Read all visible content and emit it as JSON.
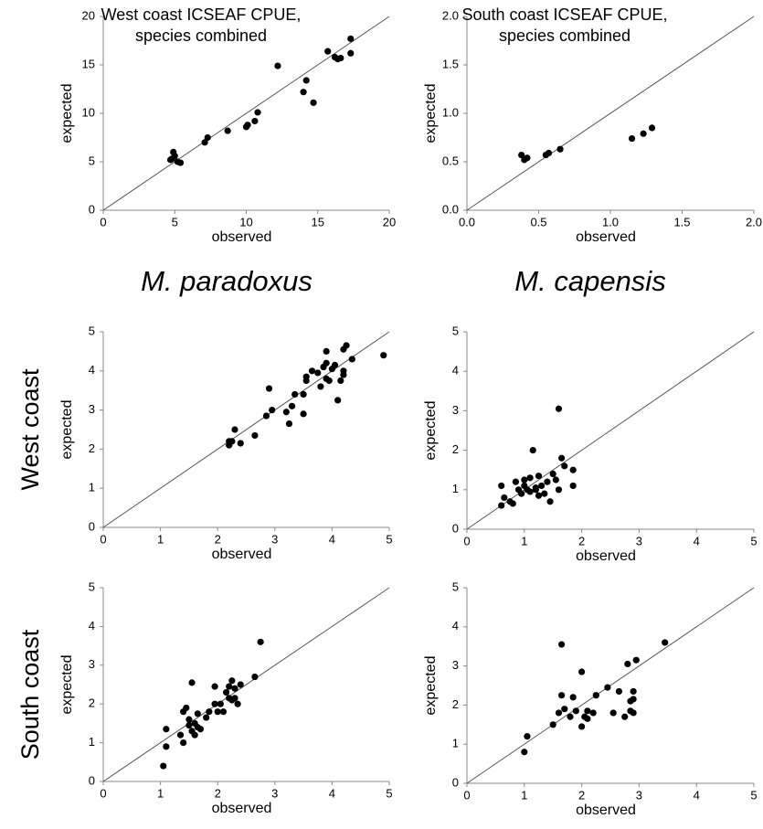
{
  "labels": {
    "columns": [
      "M. paradoxus",
      "M. capensis"
    ],
    "rows": [
      "West coast",
      "South coast"
    ]
  },
  "chart_data": [
    {
      "type": "scatter",
      "title": [
        "West coast ICSEAF CPUE,",
        "species combined"
      ],
      "x_label": "observed",
      "y_label": "expected",
      "color": "#000000",
      "xlim": [
        0,
        20
      ],
      "ylim": [
        0,
        20
      ],
      "xticks": [
        0,
        5,
        10,
        15,
        20
      ],
      "yticks": [
        0,
        5,
        10,
        15,
        20
      ],
      "x": [
        4.8,
        4.9,
        5.0,
        4.7,
        5.2,
        5.4,
        7.1,
        7.3,
        8.7,
        10.0,
        10.1,
        10.6,
        10.8,
        12.2,
        14.0,
        14.2,
        14.7,
        15.7,
        16.2,
        16.4,
        16.6,
        17.3,
        17.3
      ],
      "values": [
        5.3,
        6.0,
        5.6,
        5.2,
        5.0,
        4.9,
        7.0,
        7.5,
        8.2,
        8.6,
        8.8,
        9.2,
        10.1,
        14.9,
        12.2,
        13.4,
        11.1,
        16.4,
        15.8,
        15.6,
        15.7,
        16.2,
        17.7
      ]
    },
    {
      "type": "scatter",
      "title": [
        "South coast ICSEAF CPUE,",
        "species combined"
      ],
      "x_label": "observed",
      "y_label": "expected",
      "color": "#000000",
      "xlim": [
        0,
        2
      ],
      "ylim": [
        0,
        2
      ],
      "xticks": [
        {
          "value": 0,
          "label": "0.0"
        },
        {
          "value": 0.5,
          "label": "0.5"
        },
        {
          "value": 1,
          "label": "1.0"
        },
        {
          "value": 1.5,
          "label": "1.5"
        },
        {
          "value": 2,
          "label": "2.0"
        }
      ],
      "yticks": [
        {
          "value": 0,
          "label": "0.0"
        },
        {
          "value": 0.5,
          "label": "0.5"
        },
        {
          "value": 1,
          "label": "1.0"
        },
        {
          "value": 1.5,
          "label": "1.5"
        },
        {
          "value": 2,
          "label": "2.0"
        }
      ],
      "x": [
        0.38,
        0.4,
        0.42,
        0.55,
        0.57,
        0.65,
        1.15,
        1.23,
        1.29
      ],
      "values": [
        0.57,
        0.52,
        0.54,
        0.57,
        0.59,
        0.63,
        0.74,
        0.79,
        0.85
      ]
    },
    {
      "type": "scatter",
      "x_label": "observed",
      "y_label": "expected",
      "color": "#000000",
      "xlim": [
        0,
        5
      ],
      "ylim": [
        0,
        5
      ],
      "xticks": [
        0,
        1,
        2,
        3,
        4,
        5
      ],
      "yticks": [
        0,
        1,
        2,
        3,
        4,
        5
      ],
      "x": [
        2.2,
        2.2,
        2.25,
        2.3,
        2.4,
        2.65,
        2.85,
        2.9,
        2.95,
        3.2,
        3.25,
        3.3,
        3.35,
        3.5,
        3.5,
        3.55,
        3.55,
        3.65,
        3.75,
        3.8,
        3.85,
        3.9,
        3.9,
        3.9,
        3.95,
        4.0,
        4.05,
        4.1,
        4.15,
        4.2,
        4.2,
        4.2,
        4.25,
        4.35,
        4.9
      ],
      "values": [
        2.1,
        2.2,
        2.2,
        2.5,
        2.15,
        2.35,
        2.85,
        3.55,
        3.0,
        2.95,
        2.65,
        3.1,
        3.4,
        3.4,
        2.9,
        3.75,
        3.85,
        4.0,
        3.95,
        3.6,
        4.1,
        4.2,
        3.8,
        4.5,
        3.75,
        4.05,
        4.15,
        3.25,
        3.75,
        3.9,
        4.0,
        4.55,
        4.65,
        4.3,
        4.4
      ]
    },
    {
      "type": "scatter",
      "x_label": "observed",
      "y_label": "expected",
      "color": "#000000",
      "xlim": [
        0,
        5
      ],
      "ylim": [
        0,
        5
      ],
      "xticks": [
        0,
        1,
        2,
        3,
        4,
        5
      ],
      "yticks": [
        0,
        1,
        2,
        3,
        4,
        5
      ],
      "x": [
        0.6,
        0.6,
        0.65,
        0.75,
        0.8,
        0.85,
        0.9,
        0.95,
        1.0,
        1.0,
        1.05,
        1.1,
        1.1,
        1.15,
        1.2,
        1.25,
        1.25,
        1.3,
        1.35,
        1.4,
        1.45,
        1.5,
        1.55,
        1.6,
        1.6,
        1.65,
        1.7,
        1.85,
        1.85,
        1.2
      ],
      "values": [
        0.6,
        1.1,
        0.8,
        0.7,
        0.65,
        1.2,
        1.0,
        0.9,
        1.1,
        1.25,
        1.0,
        0.95,
        1.3,
        2.0,
        1.05,
        1.35,
        0.85,
        1.1,
        0.9,
        1.2,
        0.7,
        1.4,
        1.25,
        3.05,
        1.0,
        1.8,
        1.6,
        1.5,
        1.1,
        1.0
      ]
    },
    {
      "type": "scatter",
      "x_label": "observed",
      "y_label": "expected",
      "color": "#000000",
      "xlim": [
        0,
        5
      ],
      "ylim": [
        0,
        5
      ],
      "xticks": [
        0,
        1,
        2,
        3,
        4,
        5
      ],
      "yticks": [
        0,
        1,
        2,
        3,
        4,
        5
      ],
      "x": [
        1.05,
        1.1,
        1.1,
        1.35,
        1.4,
        1.4,
        1.45,
        1.5,
        1.5,
        1.55,
        1.55,
        1.6,
        1.6,
        1.65,
        1.65,
        1.7,
        1.8,
        1.85,
        1.95,
        1.95,
        2.0,
        2.05,
        2.1,
        2.15,
        2.2,
        2.2,
        2.25,
        2.25,
        2.3,
        2.3,
        2.35,
        2.4,
        2.65,
        2.75
      ],
      "values": [
        0.4,
        0.9,
        1.35,
        1.2,
        1.8,
        1.0,
        1.9,
        1.6,
        1.45,
        2.55,
        1.3,
        1.2,
        1.5,
        1.4,
        1.75,
        1.35,
        1.65,
        1.8,
        2.0,
        2.45,
        1.8,
        2.0,
        1.8,
        2.3,
        2.15,
        2.45,
        2.6,
        2.1,
        2.4,
        2.15,
        2.0,
        2.5,
        2.7,
        3.6
      ]
    },
    {
      "type": "scatter",
      "x_label": "observed",
      "y_label": "expected",
      "color": "#000000",
      "xlim": [
        0,
        5
      ],
      "ylim": [
        0,
        5
      ],
      "xticks": [
        0,
        1,
        2,
        3,
        4,
        5
      ],
      "yticks": [
        0,
        1,
        2,
        3,
        4,
        5
      ],
      "x": [
        1.0,
        1.05,
        1.5,
        1.6,
        1.65,
        1.65,
        1.7,
        1.8,
        1.85,
        1.9,
        2.0,
        2.0,
        2.05,
        2.1,
        2.1,
        2.2,
        2.25,
        2.45,
        2.55,
        2.65,
        2.75,
        2.8,
        2.85,
        2.85,
        2.9,
        2.9,
        2.95,
        3.45,
        2.9
      ],
      "values": [
        0.8,
        1.2,
        1.5,
        1.8,
        2.25,
        3.55,
        1.9,
        1.7,
        2.2,
        1.85,
        2.85,
        1.45,
        1.7,
        1.65,
        1.85,
        1.8,
        2.25,
        2.45,
        1.8,
        2.35,
        1.7,
        3.05,
        1.85,
        2.1,
        2.15,
        2.35,
        3.15,
        3.6,
        1.8
      ]
    }
  ]
}
